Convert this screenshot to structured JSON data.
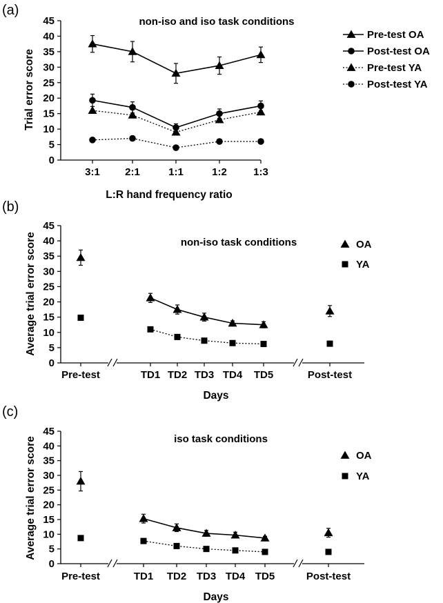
{
  "chart_data": [
    {
      "type": "line",
      "panel": "(a)",
      "title": "non-iso and iso task conditions",
      "xlabel": "L:R hand frequency ratio",
      "ylabel": "Trial error score",
      "ylim": [
        0,
        45
      ],
      "yticks": [
        "0",
        "5",
        "10",
        "15",
        "20",
        "25",
        "30",
        "35",
        "40",
        "45"
      ],
      "categories": [
        "3:1",
        "2:1",
        "1:1",
        "1:2",
        "1:3"
      ],
      "series": [
        {
          "name": "Pre-test OA",
          "marker": "triangle",
          "line": "solid",
          "values": [
            37.5,
            35,
            28,
            30.5,
            34
          ],
          "errors": [
            2.7,
            3.3,
            3.2,
            2.8,
            2.5
          ]
        },
        {
          "name": "Post-test OA",
          "marker": "circle",
          "line": "solid",
          "values": [
            19.3,
            17,
            10.5,
            15,
            17.5
          ],
          "errors": [
            2.0,
            1.8,
            1.2,
            1.5,
            1.6
          ]
        },
        {
          "name": "Pre-test YA",
          "marker": "triangle",
          "line": "dotted",
          "values": [
            16,
            14.5,
            9,
            13,
            15.5
          ],
          "errors": [
            0,
            0,
            0,
            0,
            0
          ]
        },
        {
          "name": "Post-test YA",
          "marker": "circle",
          "line": "dotted",
          "values": [
            6.5,
            7,
            4,
            6,
            6
          ],
          "errors": [
            0,
            0,
            0,
            0,
            0
          ]
        }
      ],
      "legend_position": "right"
    },
    {
      "type": "line",
      "panel": "(b)",
      "title": "non-iso task conditions",
      "xlabel": "Days",
      "ylabel": "Average trial error score",
      "ylim": [
        0,
        45
      ],
      "yticks": [
        "0",
        "5",
        "10",
        "15",
        "20",
        "25",
        "30",
        "35",
        "40",
        "45"
      ],
      "categories": [
        "Pre-test",
        "TD1",
        "TD2",
        "TD3",
        "TD4",
        "TD5",
        "Post-test"
      ],
      "series": [
        {
          "name": "OA",
          "marker": "triangle",
          "line": "solid",
          "values": [
            34.5,
            21.3,
            17.5,
            15,
            13,
            12.5,
            17
          ],
          "errors": [
            2.5,
            1.5,
            1.5,
            1.3,
            0.8,
            1.0,
            1.8
          ]
        },
        {
          "name": "YA",
          "marker": "square",
          "line": "dotted",
          "values": [
            14.8,
            11,
            8.5,
            7.3,
            6.5,
            6.2,
            6.3
          ],
          "errors": [
            0,
            0,
            0,
            0,
            0,
            0,
            0
          ]
        }
      ],
      "legend_position": "top-right"
    },
    {
      "type": "line",
      "panel": "(c)",
      "title": "iso task conditions",
      "xlabel": "Days",
      "ylabel": "Average trial error score",
      "ylim": [
        0,
        45
      ],
      "yticks": [
        "0",
        "5",
        "10",
        "15",
        "20",
        "25",
        "30",
        "35",
        "40",
        "45"
      ],
      "categories": [
        "Pre-test",
        "TD1",
        "TD2",
        "TD3",
        "TD4",
        "TD5",
        "Post-test"
      ],
      "series": [
        {
          "name": "OA",
          "marker": "triangle",
          "line": "solid",
          "values": [
            28,
            15.3,
            12.2,
            10.3,
            9.7,
            8.7,
            10.5
          ],
          "errors": [
            3.3,
            1.5,
            1.3,
            1.0,
            1.0,
            0.6,
            1.5
          ]
        },
        {
          "name": "YA",
          "marker": "square",
          "line": "dotted",
          "values": [
            8.7,
            7.7,
            6,
            5,
            4.5,
            4,
            4
          ],
          "errors": [
            0,
            0,
            0,
            0,
            0,
            0,
            0
          ]
        }
      ],
      "legend_position": "top-right"
    }
  ]
}
